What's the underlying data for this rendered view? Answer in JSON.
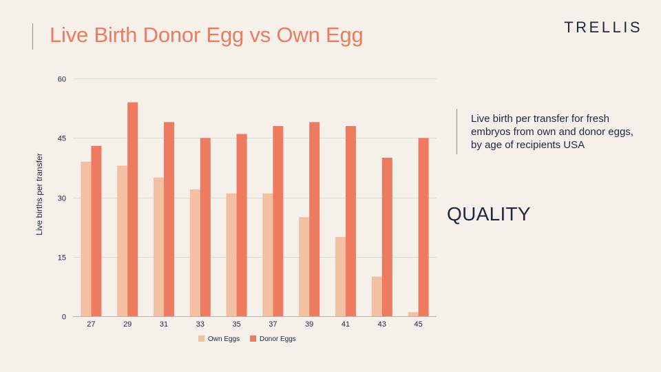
{
  "page": {
    "title": "Live Birth Donor Egg vs Own Egg",
    "logo": "TRELLIS",
    "description": "Live birth per transfer for fresh embryos from own and donor eggs, by age of recipients USA",
    "highlight": "QUALITY"
  },
  "colors": {
    "title": "#ee7b5f",
    "own_eggs": "#f4c0a2",
    "donor_eggs": "#ee7b5f",
    "text_dark": "#1f2740",
    "background": "#f5f0ea"
  },
  "chart_data": {
    "type": "bar",
    "title": "",
    "xlabel": "",
    "ylabel": "Live births per transfer",
    "categories": [
      "27",
      "29",
      "31",
      "33",
      "35",
      "37",
      "39",
      "41",
      "43",
      "45"
    ],
    "series": [
      {
        "name": "Own Eggs",
        "values": [
          39,
          38,
          35,
          32,
          31,
          31,
          25,
          20,
          10,
          1
        ]
      },
      {
        "name": "Donor Eggs",
        "values": [
          43,
          54,
          49,
          45,
          46,
          48,
          49,
          48,
          40,
          45
        ]
      }
    ],
    "ylim": [
      0,
      60
    ],
    "yticks": [
      "0",
      "15",
      "30",
      "45",
      "60"
    ],
    "grid": true,
    "legend_position": "bottom"
  }
}
